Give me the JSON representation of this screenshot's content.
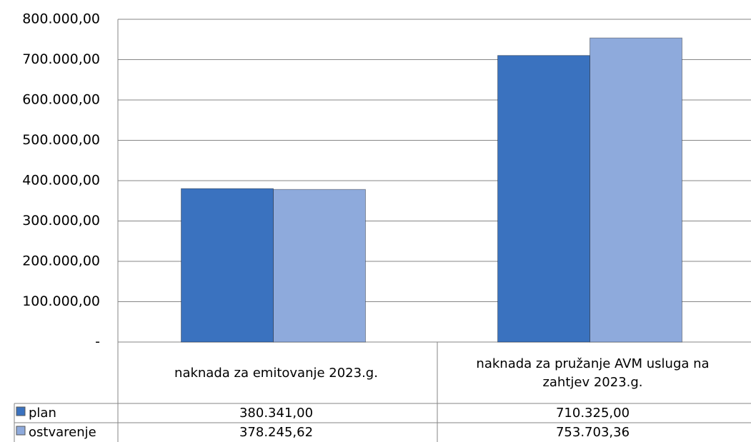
{
  "chart_data": {
    "type": "bar",
    "categories": [
      "naknada za emitovanje 2023.g.",
      "naknada za pružanje AVM usluga na zahtjev 2023.g."
    ],
    "series": [
      {
        "name": "plan",
        "color": "#3a72bf",
        "values": [
          380341.0,
          710325.0
        ],
        "value_labels": [
          "380.341,00",
          "710.325,00"
        ]
      },
      {
        "name": "ostvarenje",
        "color": "#8eaadc",
        "values": [
          378245.62,
          753703.36
        ],
        "value_labels": [
          "378.245,62",
          "753.703,36"
        ]
      }
    ],
    "ylim": [
      0,
      800000
    ],
    "yticks": [
      {
        "value": 0,
        "label": "-"
      },
      {
        "value": 100000,
        "label": "100.000,00"
      },
      {
        "value": 200000,
        "label": "200.000,00"
      },
      {
        "value": 300000,
        "label": "300.000,00"
      },
      {
        "value": 400000,
        "label": "400.000,00"
      },
      {
        "value": 500000,
        "label": "500.000,00"
      },
      {
        "value": 600000,
        "label": "600.000,00"
      },
      {
        "value": 700000,
        "label": "700.000,00"
      },
      {
        "value": 800000,
        "label": "800.000,00"
      }
    ],
    "grid": true
  }
}
